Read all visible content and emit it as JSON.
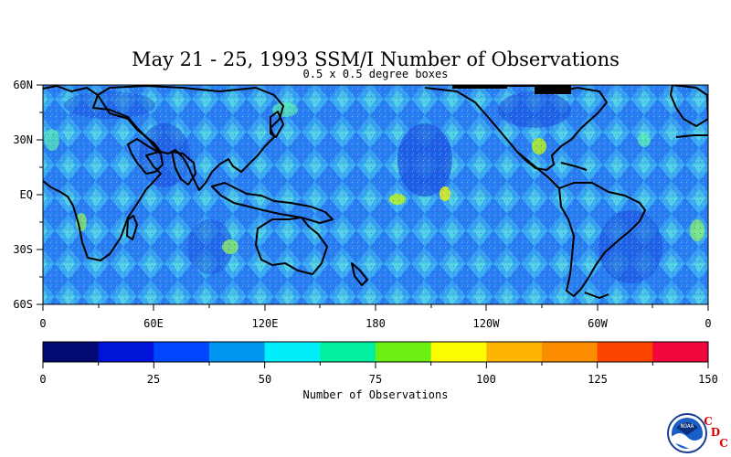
{
  "title": "May 21 - 25, 1993 SSM/I Number of Observations",
  "subtitle": "0.5 x 0.5 degree boxes",
  "map": {
    "lat_labels": [
      "60N",
      "30N",
      "EQ",
      "30S",
      "60S"
    ],
    "lon_labels": [
      "0",
      "60E",
      "120E",
      "180",
      "120W",
      "60W",
      "0"
    ],
    "lat_range": [
      -60,
      60
    ],
    "lon_range": [
      0,
      360
    ],
    "land_outline_color": "#000000"
  },
  "colorbar": {
    "label": "Number of Observations",
    "tick_labels": [
      "0",
      "25",
      "50",
      "75",
      "100",
      "125",
      "150"
    ],
    "range": [
      0,
      150
    ],
    "bins": 12,
    "colors": [
      "#000a70",
      "#0014d9",
      "#0046ff",
      "#0096f0",
      "#00eefa",
      "#00f0a0",
      "#6cf014",
      "#fcfc00",
      "#fcb400",
      "#fc8c00",
      "#fc4600",
      "#f0083c"
    ]
  },
  "logo": {
    "emblem_text": "NOAA",
    "letters": [
      "C",
      "D",
      "C"
    ],
    "letter_color": "#e00000"
  }
}
